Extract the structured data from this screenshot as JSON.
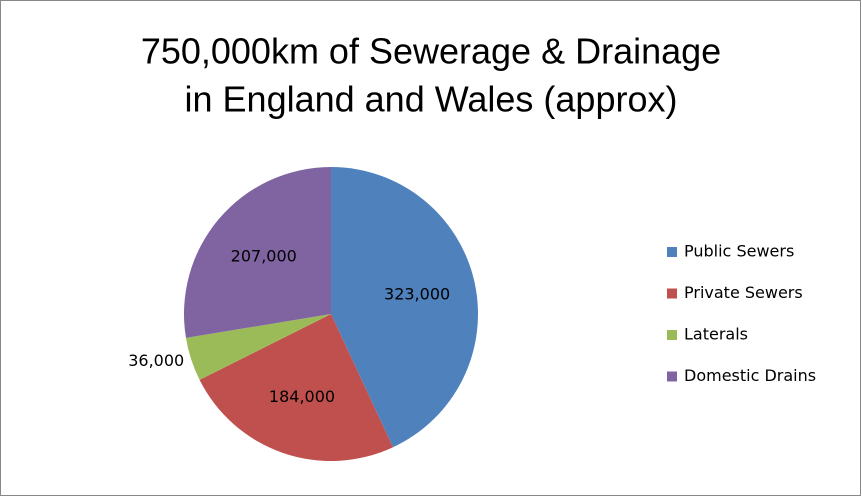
{
  "chart_data": {
    "type": "pie",
    "title": [
      "750,000km of Sewerage & Drainage",
      "in England and Wales (approx)"
    ],
    "categories": [
      "Public Sewers",
      "Private Sewers",
      "Laterals",
      "Domestic Drains"
    ],
    "values": [
      323000,
      184000,
      36000,
      207000
    ],
    "value_labels": [
      "323,000",
      "184,000",
      "36,000",
      "207,000"
    ],
    "colors": [
      "#4f81bd",
      "#c0504d",
      "#9bbb59",
      "#8064a2"
    ],
    "legend": "right"
  }
}
